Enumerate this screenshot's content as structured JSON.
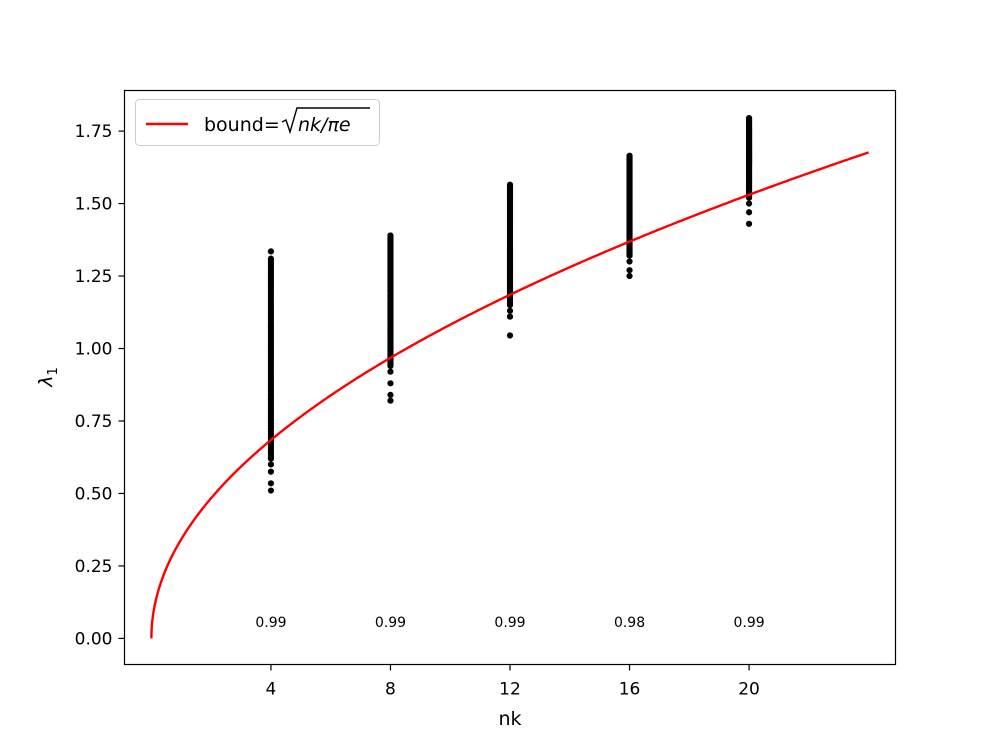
{
  "chart_data": {
    "type": "scatter",
    "xlabel": "nk",
    "ylabel_base": "λ",
    "ylabel_sub": "1",
    "xlim": [
      -0.9,
      24.9
    ],
    "ylim": [
      -0.09,
      1.89
    ],
    "x_ticks": [
      4,
      8,
      12,
      16,
      20
    ],
    "x_tick_labels": [
      "4",
      "8",
      "12",
      "16",
      "20"
    ],
    "y_ticks": [
      0.0,
      0.25,
      0.5,
      0.75,
      1.0,
      1.25,
      1.5,
      1.75
    ],
    "y_tick_labels": [
      "0.00",
      "0.25",
      "0.50",
      "0.75",
      "1.00",
      "1.25",
      "1.50",
      "1.75"
    ],
    "grid": false,
    "legend": {
      "placement": "upper-left",
      "label_prefix": "bound=",
      "label_math": "nk/πe"
    },
    "bound_curve": {
      "name": "bound=√(nk/πe)",
      "formula": "sqrt(x / (pi * e))",
      "x_range": [
        0,
        24
      ],
      "color": "#ff0000"
    },
    "scatter_series": [
      {
        "x": 4,
        "y_min": 0.51,
        "y_max": 1.335,
        "outliers": [
          0.51,
          0.535,
          0.575,
          0.6,
          1.31,
          1.335
        ]
      },
      {
        "x": 8,
        "y_min": 0.82,
        "y_max": 1.39,
        "outliers": [
          0.82,
          0.84,
          0.88,
          0.92
        ]
      },
      {
        "x": 12,
        "y_min": 1.045,
        "y_max": 1.565,
        "outliers": [
          1.045,
          1.11,
          1.13
        ]
      },
      {
        "x": 16,
        "y_min": 1.25,
        "y_max": 1.665,
        "outliers": [
          1.25,
          1.27,
          1.3
        ]
      },
      {
        "x": 20,
        "y_min": 1.43,
        "y_max": 1.795,
        "outliers": [
          1.43,
          1.47,
          1.5
        ]
      }
    ],
    "annotations": [
      {
        "x": 4,
        "y": 0.04,
        "text": "0.99"
      },
      {
        "x": 8,
        "y": 0.04,
        "text": "0.99"
      },
      {
        "x": 12,
        "y": 0.04,
        "text": "0.99"
      },
      {
        "x": 16,
        "y": 0.04,
        "text": "0.98"
      },
      {
        "x": 20,
        "y": 0.04,
        "text": "0.99"
      }
    ],
    "colors": {
      "points": "#000000",
      "bound": "#ff0000"
    }
  }
}
